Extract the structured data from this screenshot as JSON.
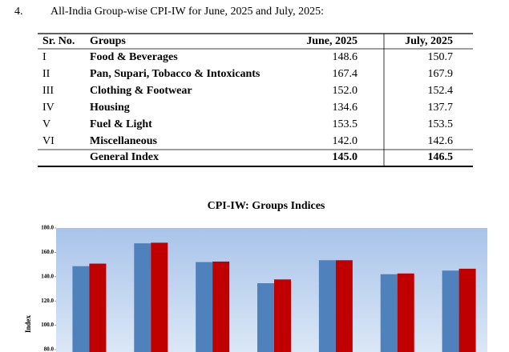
{
  "section": {
    "number": "4.",
    "heading": "All-India Group-wise CPI-IW for June, 2025 and July, 2025:"
  },
  "table": {
    "header": [
      "Sr. No.",
      "Groups",
      "June, 2025",
      "July, 2025"
    ],
    "rows": [
      [
        "I",
        "Food & Beverages",
        "148.6",
        "150.7"
      ],
      [
        "II",
        "Pan, Supari, Tobacco & Intoxicants",
        "167.4",
        "167.9"
      ],
      [
        "III",
        "Clothing & Footwear",
        "152.0",
        "152.4"
      ],
      [
        "IV",
        "Housing",
        "134.6",
        "137.7"
      ],
      [
        "V",
        "Fuel & Light",
        "153.5",
        "153.5"
      ],
      [
        "VI",
        "Miscellaneous",
        "142.0",
        "142.6"
      ]
    ],
    "total": [
      "General Index",
      "145.0",
      "146.5"
    ]
  },
  "chart_data": {
    "type": "bar",
    "title": "CPI-IW: Groups Indices",
    "y_label": "Index",
    "categories": [
      null,
      null,
      null,
      null,
      null,
      null,
      null
    ],
    "series": [
      {
        "color": "#4f81bd",
        "values": [
          148.6,
          167.4,
          152.0,
          134.6,
          153.5,
          142.0,
          145.0
        ]
      },
      {
        "color": "#c00000",
        "values": [
          150.7,
          167.9,
          152.4,
          137.7,
          153.5,
          142.6,
          146.5
        ]
      }
    ],
    "ylim": [
      80,
      180
    ],
    "yticks": [
      {
        "value": 80,
        "label": "80.0"
      },
      {
        "value": 100,
        "label": "100.0"
      },
      {
        "value": 120,
        "label": "120.0"
      },
      {
        "value": 140,
        "label": "140.0"
      },
      {
        "value": 160,
        "label": "160.0"
      },
      {
        "value": 180,
        "label": "180.0"
      }
    ]
  }
}
